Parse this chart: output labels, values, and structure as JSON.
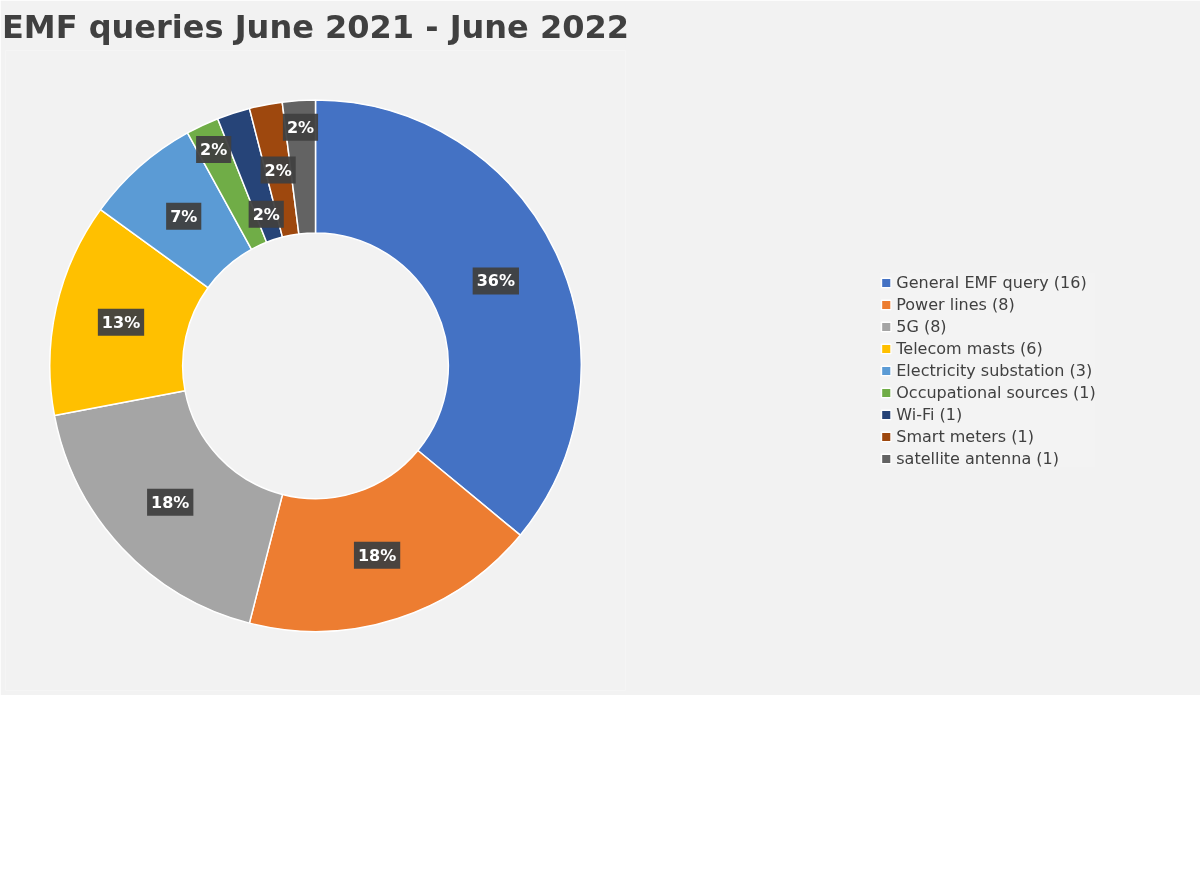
{
  "chart_data": {
    "type": "donut",
    "title": "EMF queries June 2021 - June 2022",
    "categories": [
      "General EMF query (16)",
      "Power lines (8)",
      "5G (8)",
      "Telecom masts (6)",
      "Electricity substation (3)",
      "Occupational sources (1)",
      "Wi-Fi (1)",
      "Smart meters (1)",
      "satellite antenna (1)"
    ],
    "values": [
      36,
      18,
      18,
      13,
      7,
      2,
      2,
      2,
      2
    ],
    "value_labels": [
      "36%",
      "18%",
      "18%",
      "13%",
      "7%",
      "2%",
      "2%",
      "2%",
      "2%"
    ],
    "colors": [
      "#4472c4",
      "#ed7d31",
      "#a5a5a5",
      "#ffc000",
      "#5b9bd5",
      "#70ad47",
      "#264478",
      "#9e480e",
      "#636363"
    ],
    "legend": "right"
  }
}
